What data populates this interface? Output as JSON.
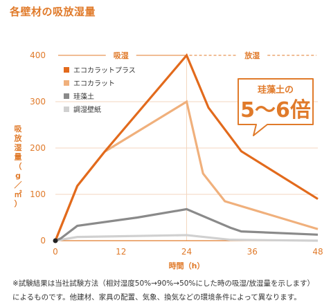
{
  "title": "各壁材の吸放湿量",
  "notes": [
    "※試験結果は当社試験方法（相対湿度50%→90%→50%にした時の吸湿/放湿量を示します）",
    "によるものです。他建材、家具の配置、気象、換気などの環境条件によって異なります。"
  ],
  "colors": {
    "accent": "#e07a2a",
    "series": [
      "#e26a1c",
      "#f0b07c",
      "#8a8a8a",
      "#d0d0d0"
    ]
  },
  "chart_data": {
    "type": "line",
    "xlabel": "時間（h）",
    "ylabel": "吸放湿量（g／㎡）",
    "xlim": [
      0,
      48
    ],
    "ylim": [
      0,
      400
    ],
    "xticks": [
      0,
      12,
      24,
      36,
      48
    ],
    "yticks": [
      0,
      100,
      200,
      300,
      400
    ],
    "phases": [
      {
        "label": "吸湿",
        "from": 0,
        "to": 24
      },
      {
        "label": "放湿",
        "from": 24,
        "to": 48
      }
    ],
    "callout": {
      "line1": "珪藻土の",
      "line2": "5～6倍"
    },
    "legend_position": "top-left",
    "series": [
      {
        "name": "エコカラットプラス",
        "x": [
          0,
          4,
          9,
          24,
          28,
          34,
          48
        ],
        "y": [
          0,
          118,
          192,
          400,
          287,
          193,
          90
        ]
      },
      {
        "name": "エコカラット",
        "x": [
          0,
          4,
          9,
          24,
          27,
          31,
          48
        ],
        "y": [
          0,
          118,
          192,
          300,
          145,
          85,
          25
        ]
      },
      {
        "name": "珪藻土",
        "x": [
          0,
          1,
          4,
          15,
          24,
          32,
          34,
          48
        ],
        "y": [
          0,
          5,
          32,
          50,
          68,
          28,
          20,
          13
        ]
      },
      {
        "name": "調湿壁紙",
        "x": [
          0,
          4,
          24,
          32,
          48
        ],
        "y": [
          0,
          8,
          12,
          2,
          0
        ]
      }
    ]
  }
}
